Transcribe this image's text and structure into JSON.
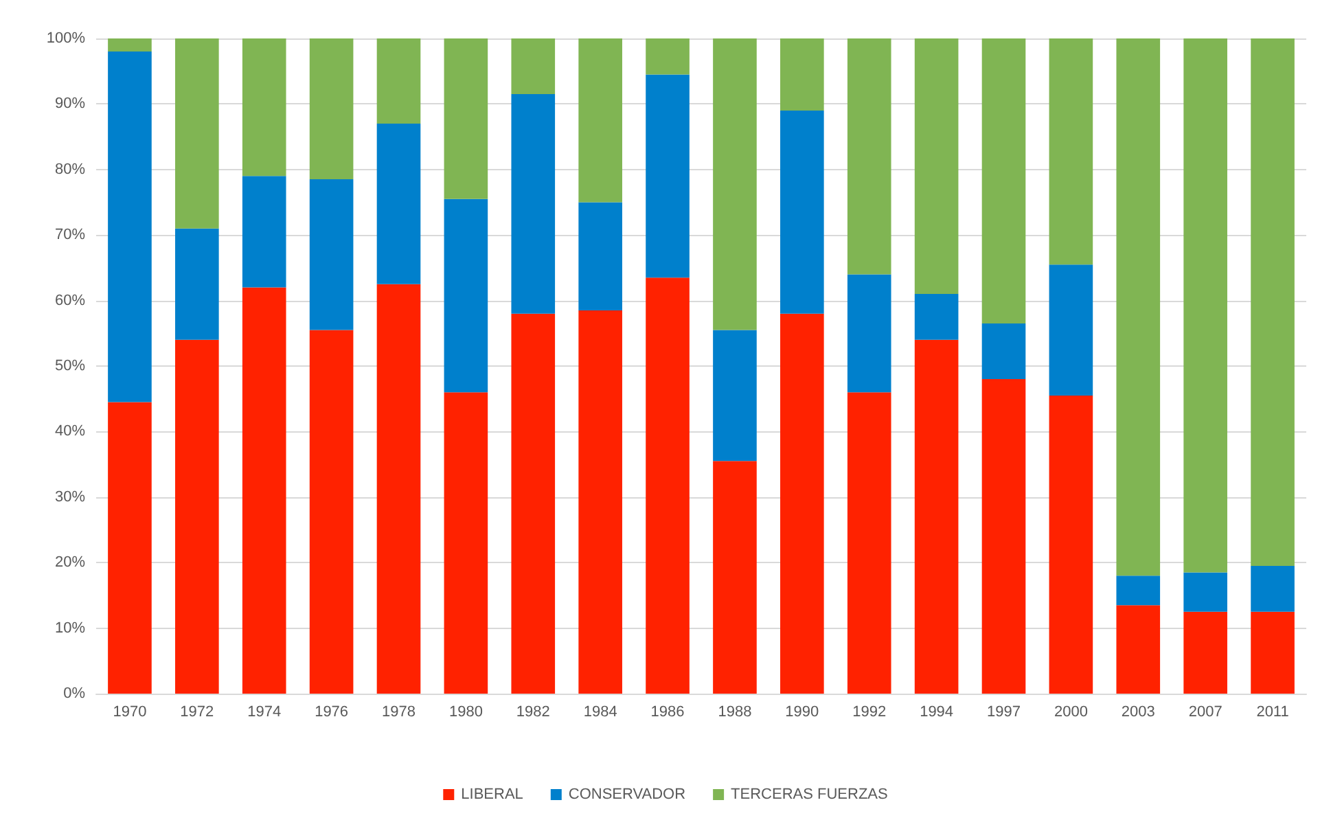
{
  "chart_data": {
    "type": "bar",
    "stacked": true,
    "categories": [
      "1970",
      "1972",
      "1974",
      "1976",
      "1978",
      "1980",
      "1982",
      "1984",
      "1986",
      "1988",
      "1990",
      "1992",
      "1994",
      "1997",
      "2000",
      "2003",
      "2007",
      "2011"
    ],
    "series": [
      {
        "name": "LIBERAL",
        "color": "#ff2200",
        "values": [
          44.5,
          54,
          62,
          55.5,
          62.5,
          46,
          58,
          58.5,
          63.5,
          35.5,
          58,
          46,
          54,
          48,
          45.5,
          13.5,
          12.5,
          12.5
        ]
      },
      {
        "name": "CONSERVADOR",
        "color": "#0080cc",
        "values": [
          53.5,
          17,
          17,
          23,
          24.5,
          29.5,
          33.5,
          16.5,
          31,
          20,
          31,
          18,
          7,
          8.5,
          20,
          4.5,
          6,
          7
        ]
      },
      {
        "name": "TERCERAS FUERZAS",
        "color": "#80b553",
        "values": [
          2,
          29,
          21,
          21.5,
          13,
          24.5,
          8.5,
          25,
          5.5,
          44.5,
          11,
          36,
          39,
          43.5,
          34.5,
          82,
          81.5,
          80.5
        ]
      }
    ],
    "ylim": [
      0,
      100
    ],
    "yticks": [
      {
        "value": 0,
        "label": "0%"
      },
      {
        "value": 10,
        "label": "10%"
      },
      {
        "value": 20,
        "label": "20%"
      },
      {
        "value": 30,
        "label": "30%"
      },
      {
        "value": 40,
        "label": "40%"
      },
      {
        "value": 50,
        "label": "50%"
      },
      {
        "value": 60,
        "label": "60%"
      },
      {
        "value": 70,
        "label": "70%"
      },
      {
        "value": 80,
        "label": "80%"
      },
      {
        "value": 90,
        "label": "90%"
      },
      {
        "value": 100,
        "label": "100%"
      }
    ],
    "grid": "y",
    "legend": "bottom"
  }
}
